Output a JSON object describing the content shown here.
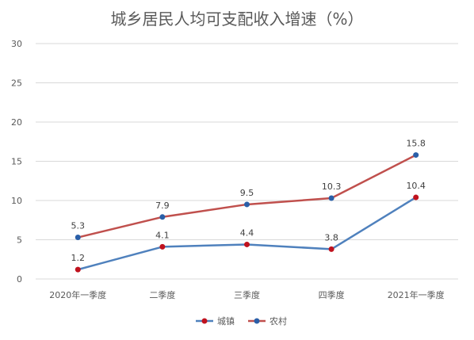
{
  "chart_data": {
    "type": "line",
    "title": "城乡居民人均可支配收入增速（%）",
    "categories": [
      "2020年一季度",
      "二季度",
      "三季度",
      "四季度",
      "2021年一季度"
    ],
    "ylim": [
      0,
      30
    ],
    "yticks": [
      0,
      5,
      10,
      15,
      20,
      25,
      30
    ],
    "grid": true,
    "legend_position": "bottom-center",
    "series": [
      {
        "name": "城镇",
        "values": [
          1.2,
          4.1,
          4.4,
          3.8,
          10.4
        ],
        "color": "#4f81bd",
        "marker_color": "#c0121e"
      },
      {
        "name": "农村",
        "values": [
          5.3,
          7.9,
          9.5,
          10.3,
          15.8
        ],
        "color": "#c0504d",
        "marker_color": "#2a5fa8"
      }
    ]
  }
}
